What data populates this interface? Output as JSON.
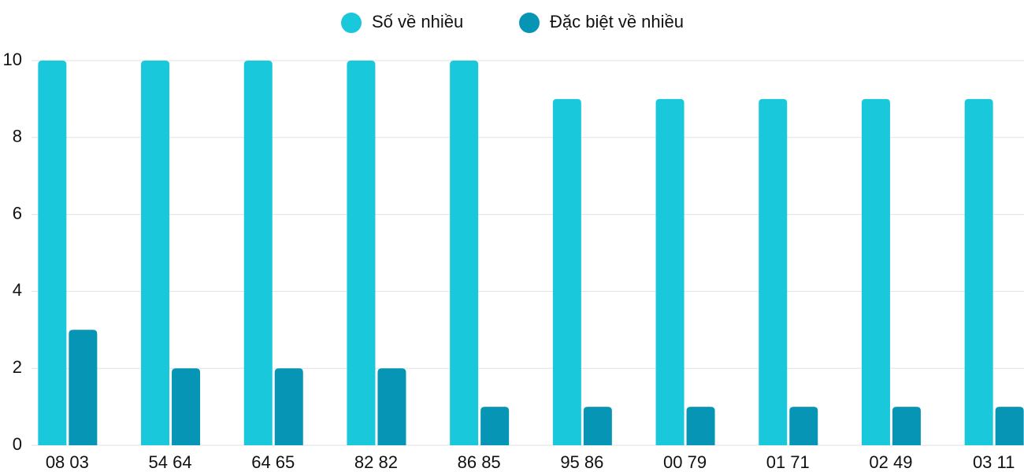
{
  "chart_data": {
    "type": "bar",
    "categories": [
      "08 03",
      "54 64",
      "64 65",
      "82 82",
      "86 85",
      "95 86",
      "00 79",
      "01 71",
      "02 49",
      "03 11"
    ],
    "series": [
      {
        "name": "Số về nhiều",
        "color": "#1ac8db",
        "values": [
          10,
          10,
          10,
          10,
          10,
          9,
          9,
          9,
          9,
          9
        ]
      },
      {
        "name": "Đặc biệt về nhiều",
        "color": "#0795b6",
        "values": [
          3,
          2,
          2,
          2,
          1,
          1,
          1,
          1,
          1,
          1
        ]
      }
    ],
    "ylim": [
      0,
      10
    ],
    "yticks": [
      0,
      2,
      4,
      6,
      8,
      10
    ],
    "grid": true,
    "legend": "top"
  }
}
